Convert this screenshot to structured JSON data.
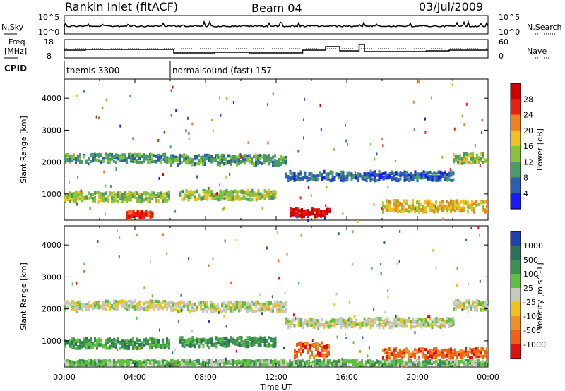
{
  "header": {
    "station": "Rankin Inlet (fitACF)",
    "beam": "Beam 04",
    "date": "03/Jul/2009"
  },
  "strips": {
    "nsky_label": "N.Sky",
    "nsearch_label": "N.Search",
    "nsky_ticks": [
      "10^5",
      "10^0"
    ],
    "nsearch_ticks": [
      "10^5",
      "10^0"
    ],
    "freq_label_1": "Freq.",
    "freq_label_2": "[MHz]",
    "freq_ticks": [
      "18",
      "8"
    ],
    "nave_label": "Nave",
    "nave_ticks": [
      "60",
      "0"
    ],
    "cpid_label": "CPID",
    "cpid_programs": [
      {
        "name": "themis 3300",
        "start_hour": 0
      },
      {
        "name": "normalsound (fast) 157",
        "start_hour": 6.0
      }
    ]
  },
  "axes": {
    "xlabel": "Time UT",
    "x_ticks": [
      "00:00",
      "04:00",
      "08:00",
      "12:00",
      "16:00",
      "20:00",
      "00:00"
    ],
    "x_range_hours": [
      0,
      24
    ],
    "ylabel": "Slant Range [km]",
    "y_ticks": [
      "1000",
      "2000",
      "3000",
      "4000"
    ],
    "y_range_km": [
      180,
      4600
    ]
  },
  "chart_data": [
    {
      "type": "heatmap",
      "title": "",
      "xlabel": "Time UT",
      "ylabel": "Slant Range [km]",
      "xlim": [
        0,
        24
      ],
      "ylim": [
        180,
        4600
      ],
      "colorbar_label": "Power [dB]",
      "colorbar_ticks": [
        "4",
        "8",
        "12",
        "16",
        "20",
        "24",
        "28"
      ],
      "colors": [
        "#1a1aff",
        "#2d5fb0",
        "#4a9a6a",
        "#86c23a",
        "#f0c020",
        "#f08020",
        "#e82010",
        "#d00000"
      ],
      "echo_regions": [
        {
          "t_start": 0.0,
          "t_end": 6.0,
          "r_center": 2100,
          "r_width": 260,
          "value_level": 2
        },
        {
          "t_start": 0.0,
          "t_end": 6.0,
          "r_center": 900,
          "r_width": 300,
          "value_level": 3
        },
        {
          "t_start": 6.0,
          "t_end": 12.5,
          "r_center": 2050,
          "r_width": 300,
          "value_level": 2
        },
        {
          "t_start": 6.5,
          "t_end": 12.0,
          "r_center": 950,
          "r_width": 280,
          "value_level": 3
        },
        {
          "t_start": 12.5,
          "t_end": 22.0,
          "r_center": 1550,
          "r_width": 280,
          "value_level": 1
        },
        {
          "t_start": 3.5,
          "t_end": 5.0,
          "r_center": 350,
          "r_width": 200,
          "value_level": 6
        },
        {
          "t_start": 12.8,
          "t_end": 15.0,
          "r_center": 400,
          "r_width": 250,
          "value_level": 7
        },
        {
          "t_start": 18.0,
          "t_end": 24.0,
          "r_center": 600,
          "r_width": 350,
          "value_level": 4
        },
        {
          "t_start": 22.0,
          "t_end": 24.0,
          "r_center": 2100,
          "r_width": 300,
          "value_level": 3
        }
      ]
    },
    {
      "type": "heatmap",
      "title": "",
      "xlabel": "Time UT",
      "ylabel": "Slant Range [km]",
      "xlim": [
        0,
        24
      ],
      "ylim": [
        180,
        4600
      ],
      "colorbar_label": "Velocity [m s^-1]",
      "colorbar_ticks": [
        "1000",
        "500",
        "100",
        "25",
        "-25",
        "-100",
        "-500",
        "-1000"
      ],
      "colors": [
        "#2040b0",
        "#2d7060",
        "#3c9050",
        "#60c040",
        "#c8c8c0",
        "#f0c020",
        "#f09020",
        "#f06010",
        "#e01010"
      ],
      "echo_regions": [
        {
          "t_start": 0.0,
          "t_end": 6.0,
          "r_center": 2100,
          "r_width": 260,
          "value_level": 4
        },
        {
          "t_start": 0.0,
          "t_end": 6.0,
          "r_center": 900,
          "r_width": 300,
          "value_level": 2
        },
        {
          "t_start": 6.0,
          "t_end": 12.5,
          "r_center": 2050,
          "r_width": 300,
          "value_level": 4
        },
        {
          "t_start": 6.5,
          "t_end": 12.0,
          "r_center": 950,
          "r_width": 280,
          "value_level": 2
        },
        {
          "t_start": 12.5,
          "t_end": 22.0,
          "r_center": 1550,
          "r_width": 280,
          "value_level": 4
        },
        {
          "t_start": 13.0,
          "t_end": 15.0,
          "r_center": 700,
          "r_width": 450,
          "value_level": 7
        },
        {
          "t_start": 0.0,
          "t_end": 24.0,
          "r_center": 300,
          "r_width": 150,
          "value_level": 3
        },
        {
          "t_start": 18.0,
          "t_end": 24.0,
          "r_center": 600,
          "r_width": 300,
          "value_level": 7
        },
        {
          "t_start": 22.0,
          "t_end": 24.0,
          "r_center": 2100,
          "r_width": 300,
          "value_level": 4
        }
      ]
    }
  ]
}
